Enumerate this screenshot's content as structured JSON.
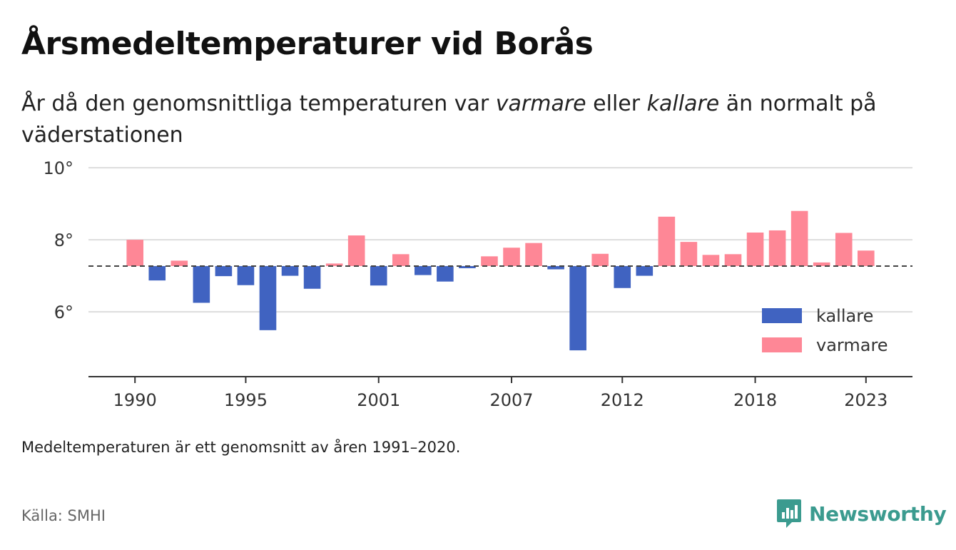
{
  "title": "Årsmedeltemperaturer vid Borås",
  "subtitle": {
    "part1": "År då den genomsnittliga temperaturen var ",
    "warmer": "varmare",
    "part2": " eller ",
    "colder": "kallare",
    "part3": " än normalt på väderstationen"
  },
  "note": "Medeltemperaturen är ett genomsnitt av åren 1991–2020.",
  "source": "Källa: SMHI",
  "brand": {
    "name": "Newsworthy",
    "icon": "newsworthy-logo-icon",
    "color": "#3b9b8f"
  },
  "chart_data": {
    "type": "bar",
    "baseline": 7.27,
    "x": [
      1990,
      1991,
      1992,
      1993,
      1994,
      1995,
      1996,
      1997,
      1998,
      1999,
      2000,
      2001,
      2002,
      2003,
      2004,
      2005,
      2006,
      2007,
      2008,
      2009,
      2010,
      2011,
      2012,
      2013,
      2014,
      2015,
      2016,
      2017,
      2018,
      2019,
      2020,
      2021,
      2022,
      2023
    ],
    "values": [
      8.0,
      6.87,
      7.42,
      6.25,
      6.99,
      6.74,
      5.49,
      7.0,
      6.64,
      7.34,
      8.12,
      6.73,
      7.6,
      7.02,
      6.84,
      7.21,
      7.54,
      7.78,
      7.91,
      7.18,
      4.93,
      7.61,
      6.66,
      7.0,
      8.64,
      7.94,
      7.58,
      7.6,
      8.2,
      8.26,
      8.8,
      7.37,
      8.19,
      7.7
    ],
    "y_ticks": [
      6,
      8,
      10
    ],
    "y_tick_labels": [
      "6°",
      "8°",
      "10°"
    ],
    "x_ticks": [
      1990,
      1995,
      2001,
      2007,
      2012,
      2018,
      2023
    ],
    "ylim": [
      4.2,
      10.2
    ],
    "xlim": [
      1987.9,
      2025.1
    ],
    "colors": {
      "colder": "#4063c1",
      "warmer": "#fe8796"
    },
    "grid": true,
    "legend": {
      "placement": "right",
      "items": [
        {
          "key": "colder",
          "label": "kallare"
        },
        {
          "key": "warmer",
          "label": "varmare"
        }
      ]
    }
  }
}
